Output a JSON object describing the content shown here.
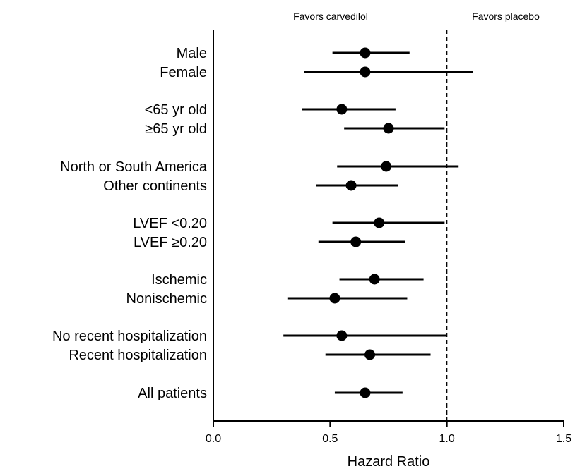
{
  "chart_data": {
    "type": "forest",
    "xlabel": "Hazard Ratio",
    "xlim": [
      0.0,
      1.5
    ],
    "xticks": [
      "0.0",
      "0.5",
      "1.0",
      "1.5"
    ],
    "reference_line": 1.0,
    "annotations": {
      "left": "Favors carvedilol",
      "right": "Favors placebo"
    },
    "rows": [
      {
        "label": "Male",
        "hr": 0.65,
        "lo": 0.51,
        "hi": 0.84
      },
      {
        "label": "Female",
        "hr": 0.65,
        "lo": 0.39,
        "hi": 1.11
      },
      {
        "label": "<65 yr old",
        "hr": 0.55,
        "lo": 0.38,
        "hi": 0.78
      },
      {
        "label": "≥65 yr old",
        "hr": 0.75,
        "lo": 0.56,
        "hi": 0.99
      },
      {
        "label": "North or South America",
        "hr": 0.74,
        "lo": 0.53,
        "hi": 1.05
      },
      {
        "label": "Other continents",
        "hr": 0.59,
        "lo": 0.44,
        "hi": 0.79
      },
      {
        "label": "LVEF <0.20",
        "hr": 0.71,
        "lo": 0.51,
        "hi": 0.99
      },
      {
        "label": "LVEF ≥0.20",
        "hr": 0.61,
        "lo": 0.45,
        "hi": 0.82
      },
      {
        "label": "Ischemic",
        "hr": 0.69,
        "lo": 0.54,
        "hi": 0.9
      },
      {
        "label": "Nonischemic",
        "hr": 0.52,
        "lo": 0.32,
        "hi": 0.83
      },
      {
        "label": "No recent hospitalization",
        "hr": 0.55,
        "lo": 0.3,
        "hi": 1.0
      },
      {
        "label": "Recent hospitalization",
        "hr": 0.67,
        "lo": 0.48,
        "hi": 0.93
      },
      {
        "label": "All patients",
        "hr": 0.65,
        "lo": 0.52,
        "hi": 0.81
      }
    ]
  }
}
